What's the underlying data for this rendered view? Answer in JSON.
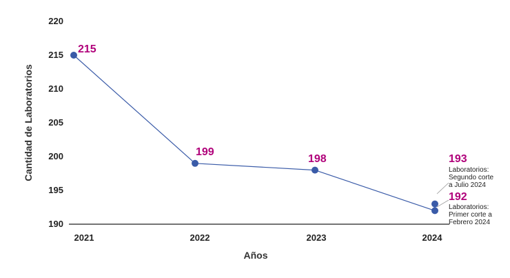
{
  "chart_data": {
    "type": "line",
    "xlabel": "Años",
    "ylabel": "Cantidad de Laboratorios",
    "ylim": [
      190,
      220
    ],
    "yticks": [
      190,
      195,
      200,
      205,
      210,
      215,
      220
    ],
    "categories": [
      "2021",
      "2022",
      "2023",
      "2024"
    ],
    "grid": false,
    "series": [
      {
        "values": [
          215,
          199,
          198,
          192
        ]
      }
    ],
    "extra_points": [
      {
        "x": "2024",
        "y": 193
      }
    ],
    "data_labels": [
      "215",
      "199",
      "198",
      "192",
      "193"
    ],
    "annotations": [
      {
        "value": "193",
        "lines": [
          "Laboratorios:",
          "Segundo corte",
          "a Julio 2024"
        ]
      },
      {
        "value": "192",
        "lines": [
          "Laboratorios:",
          "Primer corte a",
          "Febrero 2024"
        ]
      }
    ],
    "colors": {
      "line": "#3a5ba8",
      "marker": "#3a5ba8",
      "label": "#b0007a",
      "axis": "#222222"
    }
  }
}
